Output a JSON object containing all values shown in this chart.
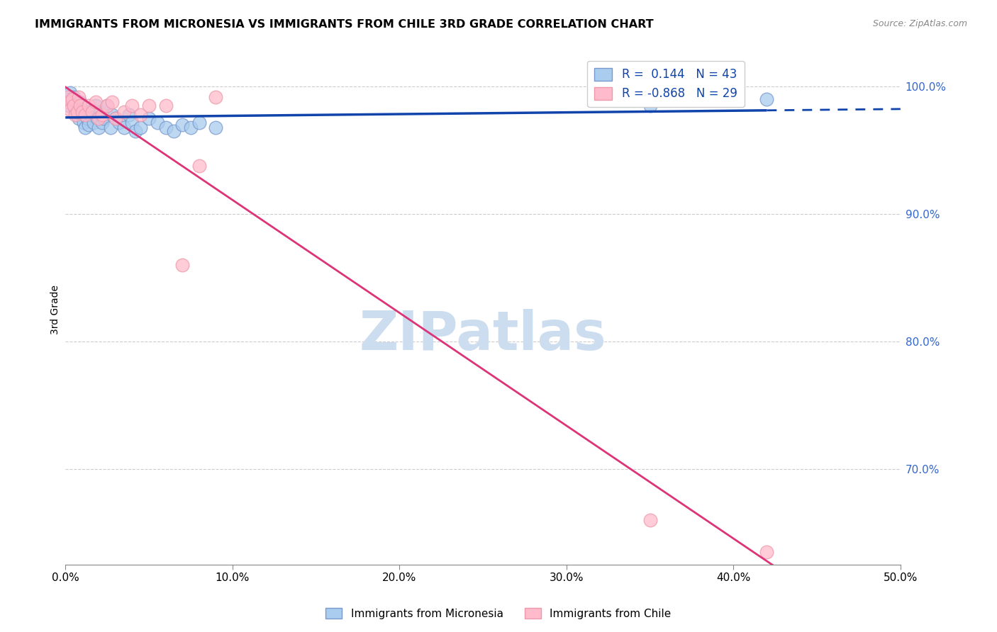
{
  "title": "IMMIGRANTS FROM MICRONESIA VS IMMIGRANTS FROM CHILE 3RD GRADE CORRELATION CHART",
  "source": "Source: ZipAtlas.com",
  "ylabel": "3rd Grade",
  "xlim": [
    0.0,
    0.5
  ],
  "ylim": [
    0.625,
    1.025
  ],
  "xtick_labels": [
    "0.0%",
    "10.0%",
    "20.0%",
    "30.0%",
    "40.0%",
    "50.0%"
  ],
  "xtick_values": [
    0.0,
    0.1,
    0.2,
    0.3,
    0.4,
    0.5
  ],
  "ytick_labels": [
    "100.0%",
    "90.0%",
    "80.0%",
    "70.0%"
  ],
  "ytick_values": [
    1.0,
    0.9,
    0.8,
    0.7
  ],
  "micronesia_R": 0.144,
  "micronesia_N": 43,
  "chile_R": -0.868,
  "chile_N": 29,
  "watermark": "ZIPatlas",
  "watermark_color": "#ccddf0",
  "micronesia_color": "#aaccee",
  "micronesia_edge": "#7799cc",
  "chile_color": "#ffbbcc",
  "chile_edge": "#ee99aa",
  "blue_line_color": "#1144aa",
  "pink_line_color": "#dd3377",
  "grid_color": "#cccccc",
  "micronesia_x": [
    0.001,
    0.002,
    0.003,
    0.004,
    0.005,
    0.006,
    0.007,
    0.008,
    0.009,
    0.01,
    0.011,
    0.012,
    0.013,
    0.014,
    0.015,
    0.016,
    0.017,
    0.018,
    0.019,
    0.02,
    0.021,
    0.022,
    0.023,
    0.025,
    0.027,
    0.028,
    0.03,
    0.032,
    0.035,
    0.038,
    0.04,
    0.042,
    0.045,
    0.05,
    0.055,
    0.06,
    0.065,
    0.07,
    0.075,
    0.08,
    0.09,
    0.35,
    0.42
  ],
  "micronesia_y": [
    0.99,
    0.985,
    0.995,
    0.988,
    0.992,
    0.982,
    0.978,
    0.975,
    0.988,
    0.98,
    0.972,
    0.968,
    0.975,
    0.97,
    0.978,
    0.982,
    0.972,
    0.985,
    0.975,
    0.968,
    0.98,
    0.972,
    0.975,
    0.985,
    0.968,
    0.978,
    0.975,
    0.972,
    0.968,
    0.978,
    0.972,
    0.965,
    0.968,
    0.975,
    0.972,
    0.968,
    0.965,
    0.97,
    0.968,
    0.972,
    0.968,
    0.985,
    0.99
  ],
  "chile_x": [
    0.001,
    0.002,
    0.003,
    0.004,
    0.005,
    0.006,
    0.007,
    0.008,
    0.009,
    0.01,
    0.012,
    0.014,
    0.016,
    0.018,
    0.02,
    0.022,
    0.025,
    0.028,
    0.03,
    0.035,
    0.04,
    0.045,
    0.05,
    0.06,
    0.07,
    0.08,
    0.09,
    0.35,
    0.42
  ],
  "chile_y": [
    0.992,
    0.988,
    0.982,
    0.99,
    0.985,
    0.978,
    0.98,
    0.992,
    0.985,
    0.98,
    0.978,
    0.985,
    0.98,
    0.988,
    0.975,
    0.978,
    0.985,
    0.988,
    0.975,
    0.98,
    0.985,
    0.978,
    0.985,
    0.985,
    0.86,
    0.938,
    0.992,
    0.66,
    0.635
  ]
}
